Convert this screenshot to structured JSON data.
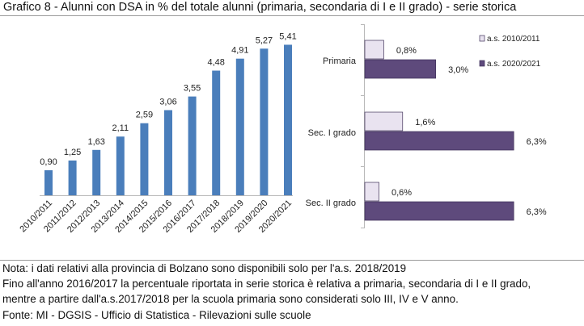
{
  "title": "Grafico 8 - Alunni con DSA in % del totale alunni (primaria, secondaria di I e II grado) - serie storica",
  "chart_data": [
    {
      "type": "bar",
      "categories": [
        "2010/2011",
        "2011/2012",
        "2012/2013",
        "2013/2014",
        "2014/2015",
        "2015/2016",
        "2016/2017",
        "2017/2018",
        "2018/2019",
        "2019/2020",
        "2020/2021"
      ],
      "values": [
        0.9,
        1.25,
        1.63,
        2.11,
        2.59,
        3.06,
        3.55,
        4.48,
        4.91,
        5.27,
        5.41
      ],
      "data_labels": [
        "0,90",
        "1,25",
        "1,63",
        "2,11",
        "2,59",
        "3,06",
        "3,55",
        "4,48",
        "4,91",
        "5,27",
        "5,41"
      ],
      "color": "#4a7ebb",
      "ylim": [
        0,
        5.8
      ],
      "grid": false
    },
    {
      "type": "bar",
      "orientation": "horizontal",
      "categories": [
        "Primaria",
        "Sec. I grado",
        "Sec. II grado"
      ],
      "series": [
        {
          "name": "a.s. 2010/2011",
          "values": [
            0.8,
            1.6,
            0.6
          ],
          "data_labels": [
            "0,8%",
            "1,6%",
            "0,6%"
          ],
          "color": "#e9e3f0"
        },
        {
          "name": "a.s. 2020/2021",
          "values": [
            3.0,
            6.3,
            6.3
          ],
          "data_labels": [
            "3,0%",
            "6,3%",
            "6,3%"
          ],
          "color": "#5e4a7c"
        }
      ],
      "xlim": [
        0,
        7.8
      ],
      "legend": "top-right",
      "grid": false
    }
  ],
  "notes": [
    "Nota: i dati relativi alla provincia di Bolzano sono disponibili solo per l'a.s. 2018/2019",
    "Fino all'anno 2016/2017 la percentuale riportata in serie storica è relativa a primaria, secondaria di I e II grado,",
    "mentre a partire dall'a.s.2017/2018 per la scuola primaria sono considerati solo III, IV e V anno.",
    "Fonte: MI - DGSIS - Ufficio di Statistica - Rilevazioni sulle scuole"
  ]
}
